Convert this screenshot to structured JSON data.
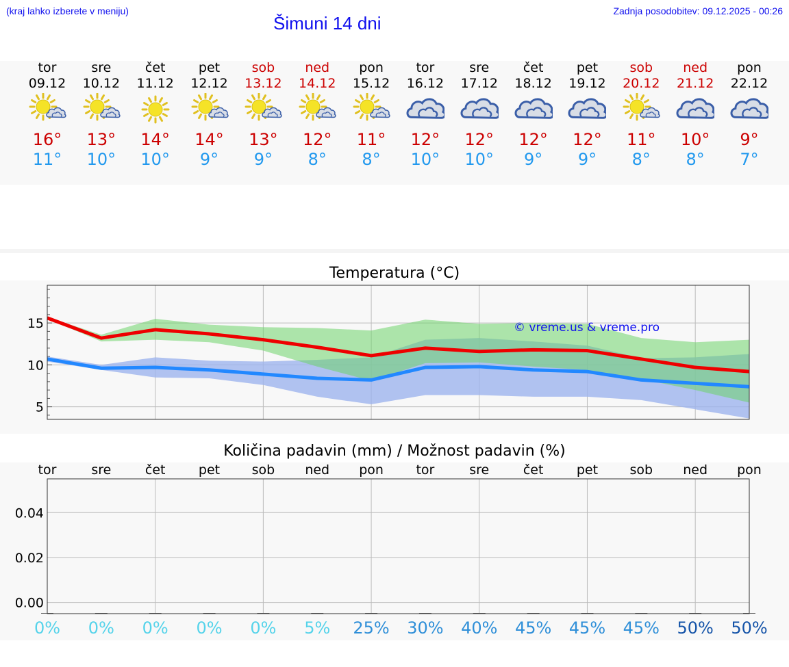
{
  "header": {
    "menu_hint": "(kraj lahko izberete v meniju)",
    "title": "Šimuni 14 dni",
    "last_update": "Zadnja posodobitev: 09.12.2025 - 00:26"
  },
  "colors": {
    "header_text": "#1010ee",
    "max_temp": "#cc0000",
    "min_temp": "#2299ee",
    "max_line": "#ee0000",
    "min_line": "#2288ff",
    "max_band": "#9de29b",
    "min_band": "#9db4ee",
    "weekend": "#cc0000"
  },
  "forecast": {
    "days": [
      {
        "day": "tor",
        "date": "09.12",
        "icon": "sun-cloud-icon",
        "tmax": "16°",
        "tmin": "11°",
        "weekend": false
      },
      {
        "day": "sre",
        "date": "10.12",
        "icon": "sun-cloud-icon",
        "tmax": "13°",
        "tmin": "10°",
        "weekend": false
      },
      {
        "day": "čet",
        "date": "11.12",
        "icon": "sun-icon",
        "tmax": "14°",
        "tmin": "10°",
        "weekend": false
      },
      {
        "day": "pet",
        "date": "12.12",
        "icon": "sun-cloud-icon",
        "tmax": "14°",
        "tmin": "9°",
        "weekend": false
      },
      {
        "day": "sob",
        "date": "13.12",
        "icon": "sun-cloud-icon",
        "tmax": "13°",
        "tmin": "9°",
        "weekend": true
      },
      {
        "day": "ned",
        "date": "14.12",
        "icon": "sun-cloud-icon",
        "tmax": "12°",
        "tmin": "8°",
        "weekend": true
      },
      {
        "day": "pon",
        "date": "15.12",
        "icon": "sun-cloud-icon",
        "tmax": "11°",
        "tmin": "8°",
        "weekend": false
      },
      {
        "day": "tor",
        "date": "16.12",
        "icon": "cloud-icon",
        "tmax": "12°",
        "tmin": "10°",
        "weekend": false
      },
      {
        "day": "sre",
        "date": "17.12",
        "icon": "cloud-icon",
        "tmax": "12°",
        "tmin": "10°",
        "weekend": false
      },
      {
        "day": "čet",
        "date": "18.12",
        "icon": "cloud-icon",
        "tmax": "12°",
        "tmin": "9°",
        "weekend": false
      },
      {
        "day": "pet",
        "date": "19.12",
        "icon": "cloud-icon",
        "tmax": "12°",
        "tmin": "9°",
        "weekend": false
      },
      {
        "day": "sob",
        "date": "20.12",
        "icon": "sun-cloud-icon",
        "tmax": "11°",
        "tmin": "8°",
        "weekend": true
      },
      {
        "day": "ned",
        "date": "21.12",
        "icon": "cloud-icon",
        "tmax": "10°",
        "tmin": "8°",
        "weekend": true
      },
      {
        "day": "pon",
        "date": "22.12",
        "icon": "cloud-icon",
        "tmax": "9°",
        "tmin": "7°",
        "weekend": false
      }
    ]
  },
  "chart_data": [
    {
      "type": "area",
      "title": "Temperatura (°C)",
      "watermark": "© vreme.us & vreme.pro",
      "ylim": [
        3.5,
        19.5
      ],
      "yticks": [
        5,
        10,
        15
      ],
      "x": [
        0,
        1,
        2,
        3,
        4,
        5,
        6,
        7,
        8,
        9,
        10,
        11,
        12,
        13
      ],
      "grid": true,
      "series": [
        {
          "name": "max",
          "values": [
            15.6,
            13.2,
            14.2,
            13.7,
            13.0,
            12.1,
            11.1,
            12.0,
            11.6,
            11.8,
            11.7,
            10.7,
            9.7,
            9.2
          ],
          "band_low": [
            15.5,
            12.8,
            13.0,
            12.7,
            11.7,
            9.8,
            8.1,
            10.2,
            10.3,
            9.8,
            9.4,
            8.3,
            7.0,
            5.5
          ],
          "band_high": [
            15.7,
            13.6,
            15.5,
            14.8,
            14.5,
            14.4,
            14.1,
            15.4,
            14.9,
            15.0,
            14.9,
            13.2,
            12.7,
            13.0
          ]
        },
        {
          "name": "min",
          "values": [
            10.7,
            9.6,
            9.7,
            9.4,
            8.9,
            8.4,
            8.2,
            9.7,
            9.8,
            9.4,
            9.2,
            8.2,
            7.8,
            7.4
          ],
          "band_low": [
            10.4,
            9.4,
            8.5,
            8.4,
            7.6,
            6.2,
            5.3,
            6.4,
            6.4,
            6.2,
            6.2,
            5.8,
            4.7,
            3.6
          ],
          "band_high": [
            11.0,
            10.0,
            10.9,
            10.5,
            10.4,
            10.6,
            10.9,
            13.0,
            13.2,
            12.8,
            12.3,
            10.8,
            10.9,
            11.3
          ]
        }
      ]
    },
    {
      "type": "bar",
      "title": "Količina padavin (mm) / Možnost padavin (%)",
      "categories": [
        "tor",
        "sre",
        "čet",
        "pet",
        "sob",
        "ned",
        "pon",
        "tor",
        "sre",
        "čet",
        "pet",
        "sob",
        "ned",
        "pon"
      ],
      "values": [
        0,
        0,
        0,
        0,
        0,
        0,
        0,
        0,
        0,
        0,
        0,
        0,
        0,
        0
      ],
      "ylim": [
        -0.005,
        0.055
      ],
      "yticks": [
        0.0,
        0.02,
        0.04
      ],
      "ytick_labels": [
        "0.00",
        "0.02",
        "0.04"
      ],
      "probability": [
        "0%",
        "0%",
        "0%",
        "0%",
        "0%",
        "5%",
        "25%",
        "30%",
        "40%",
        "45%",
        "45%",
        "45%",
        "50%",
        "50%"
      ],
      "probability_values": [
        0,
        0,
        0,
        0,
        0,
        5,
        25,
        30,
        40,
        45,
        45,
        45,
        50,
        50
      ],
      "grid": true
    }
  ]
}
